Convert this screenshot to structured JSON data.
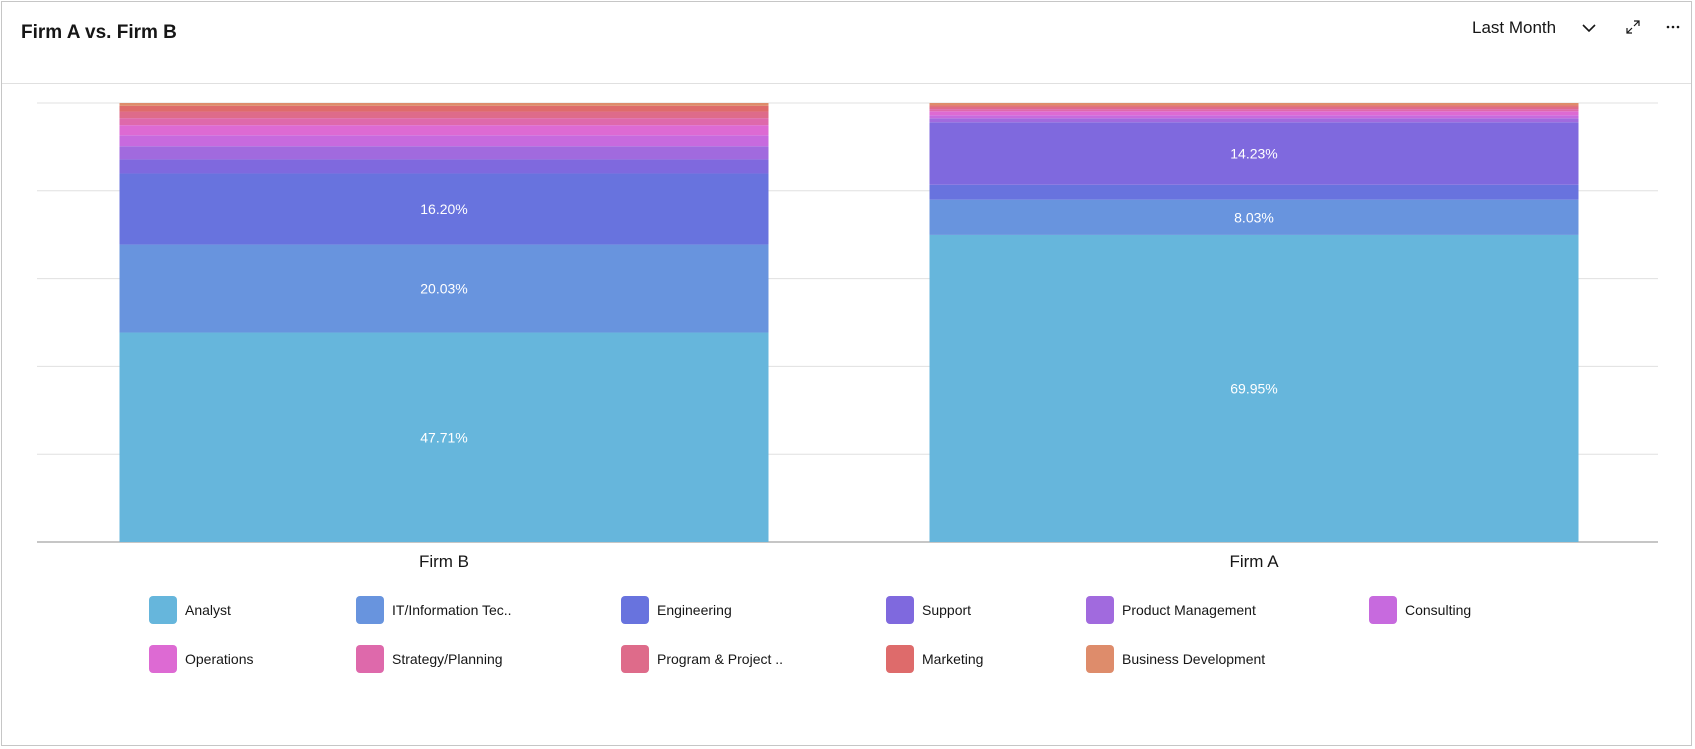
{
  "header": {
    "title": "Firm A vs. Firm B",
    "range_label": "Last Month",
    "icons": [
      "chevron-down-icon",
      "expand-icon",
      "overflow-menu-icon"
    ]
  },
  "colors": {
    "Analyst": "#66b6dc",
    "IT/Information Tec..": "#6894de",
    "Engineering": "#6873de",
    "Support": "#7f69de",
    "Product Management": "#a16ade",
    "Consulting": "#c76ade",
    "Operations": "#dd6ad3",
    "Strategy/Planning": "#de69ab",
    "Program & Project ..": "#de6b8a",
    "Marketing": "#de6b6b",
    "Business Development": "#de8c6b"
  },
  "chart_data": {
    "type": "bar",
    "stacked": true,
    "normalized": true,
    "categories": [
      "Firm B",
      "Firm A"
    ],
    "ylim": [
      0,
      100
    ],
    "grid": true,
    "legend_position": "bottom",
    "series": [
      {
        "name": "Analyst",
        "values": [
          47.71,
          69.95
        ],
        "labels": [
          "47.71%",
          "69.95%"
        ]
      },
      {
        "name": "IT/Information Tec..",
        "values": [
          20.03,
          8.03
        ],
        "labels": [
          "20.03%",
          "8.03%"
        ]
      },
      {
        "name": "Engineering",
        "values": [
          16.2,
          3.4
        ],
        "labels": [
          "16.20%",
          ""
        ]
      },
      {
        "name": "Support",
        "values": [
          3.2,
          14.23
        ],
        "labels": [
          "",
          "14.23%"
        ]
      },
      {
        "name": "Product Management",
        "values": [
          3.0,
          0.9
        ],
        "labels": [
          "",
          ""
        ]
      },
      {
        "name": "Consulting",
        "values": [
          2.5,
          0.7
        ],
        "labels": [
          "",
          ""
        ]
      },
      {
        "name": "Operations",
        "values": [
          2.3,
          0.9
        ],
        "labels": [
          "",
          ""
        ]
      },
      {
        "name": "Strategy/Planning",
        "values": [
          1.6,
          0.5
        ],
        "labels": [
          "",
          ""
        ]
      },
      {
        "name": "Program & Project ..",
        "values": [
          1.5,
          0.5
        ],
        "labels": [
          "",
          ""
        ]
      },
      {
        "name": "Marketing",
        "values": [
          1.3,
          0.4
        ],
        "labels": [
          "",
          ""
        ]
      },
      {
        "name": "Business Development",
        "values": [
          0.65,
          0.49
        ],
        "labels": [
          "",
          ""
        ]
      }
    ]
  }
}
